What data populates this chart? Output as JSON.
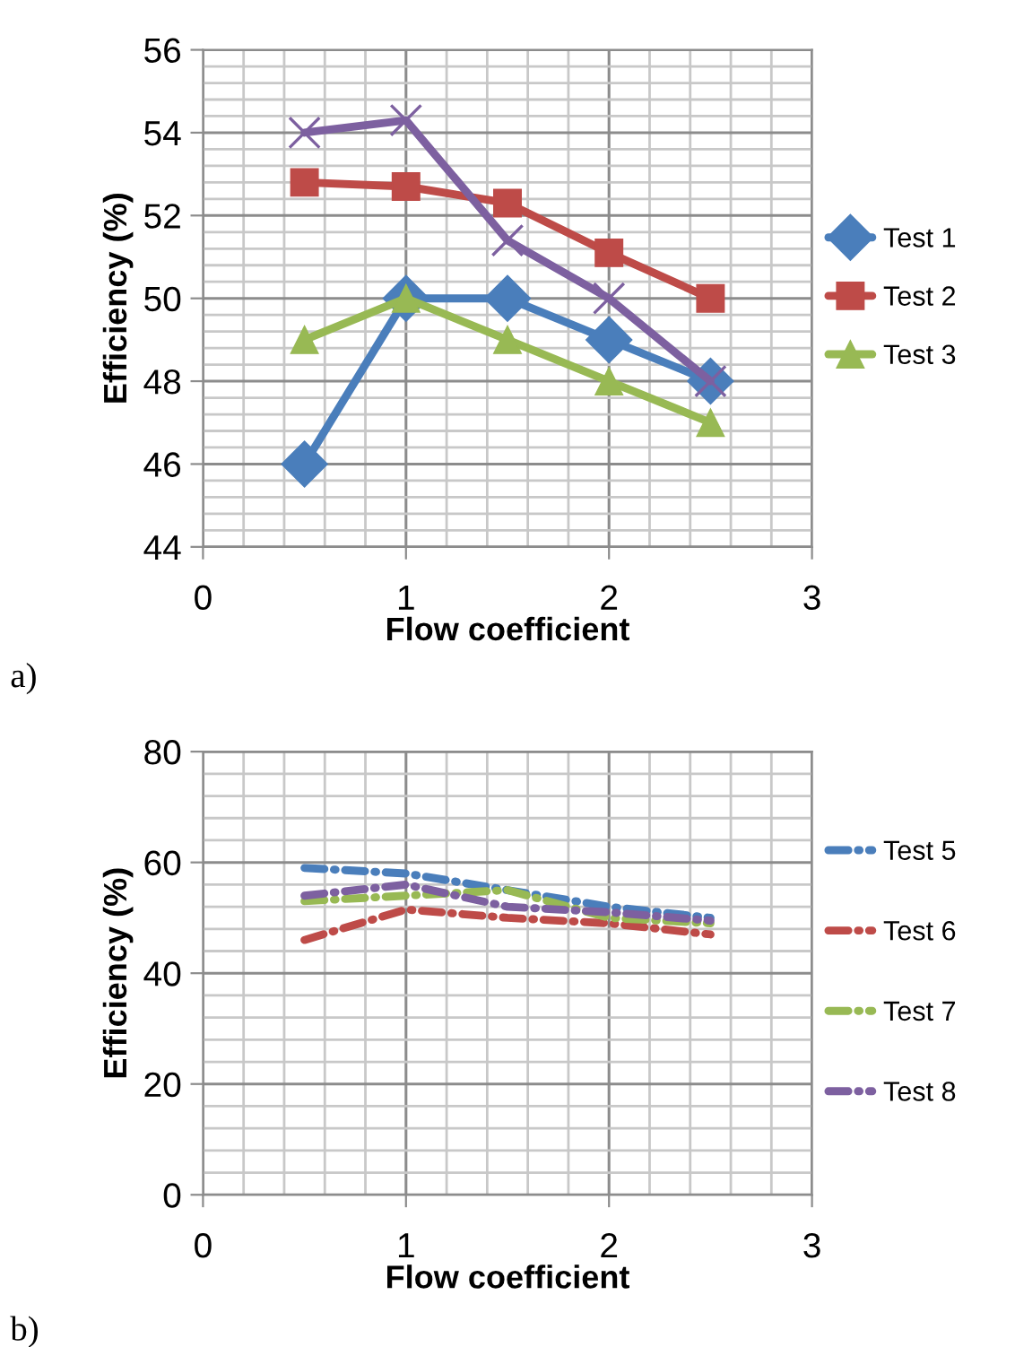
{
  "chart_data": [
    {
      "type": "line",
      "xlabel": "Flow coefficient",
      "ylabel": "Efficiency (%)",
      "annotations": [
        "a)"
      ],
      "x": [
        0.5,
        1,
        1.5,
        2,
        2.5
      ],
      "xlim": [
        0,
        3
      ],
      "xticks": [
        0,
        1,
        2,
        3
      ],
      "ylim": [
        44,
        56
      ],
      "yticks": [
        44,
        46,
        48,
        50,
        52,
        54,
        56
      ],
      "grid": true,
      "legend": "right",
      "line_style": "solid",
      "series": [
        {
          "name": "Test 1",
          "color": "#4a7ebb",
          "marker": "diamond",
          "values": [
            46,
            50,
            50,
            49,
            48
          ]
        },
        {
          "name": "Test 2",
          "color": "#be4b48",
          "marker": "square",
          "values": [
            52.8,
            52.7,
            52.3,
            51.1,
            50
          ]
        },
        {
          "name": "Test 3",
          "color": "#98b954",
          "marker": "triangle",
          "values": [
            49,
            50,
            49,
            48,
            47
          ]
        },
        {
          "color": "#7d60a0",
          "marker": "cross",
          "values": [
            54,
            54.3,
            51.4,
            50,
            48
          ]
        }
      ]
    },
    {
      "type": "line",
      "xlabel": "Flow coefficient",
      "ylabel": "Efficiency (%)",
      "annotations": [
        "b)"
      ],
      "x": [
        0.5,
        1,
        1.5,
        2,
        2.5
      ],
      "xlim": [
        0,
        3
      ],
      "xticks": [
        0,
        1,
        2,
        3
      ],
      "ylim": [
        0,
        80
      ],
      "yticks": [
        0,
        20,
        40,
        60,
        80
      ],
      "grid": true,
      "legend": "right",
      "line_style": "dashed",
      "marker": "none",
      "series": [
        {
          "name": "Test 5",
          "color": "#4a7ebb",
          "values": [
            59,
            58,
            55,
            52,
            50
          ]
        },
        {
          "name": "Test 6",
          "color": "#be4b48",
          "values": [
            46,
            51.5,
            50,
            49,
            47
          ]
        },
        {
          "name": "Test 7",
          "color": "#98b954",
          "values": [
            53,
            54,
            55,
            50,
            49
          ]
        },
        {
          "name": "Test 8",
          "color": "#7d60a0",
          "values": [
            54,
            56,
            52,
            51,
            49.5
          ]
        }
      ]
    }
  ]
}
